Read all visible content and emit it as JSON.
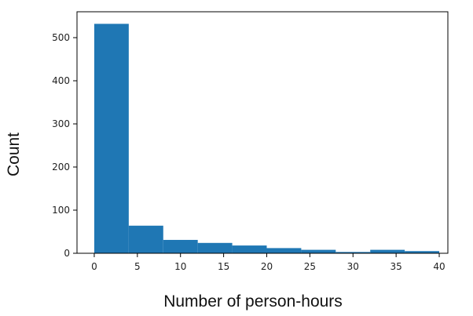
{
  "chart_data": {
    "type": "bar",
    "xlabel": "Number of person-hours",
    "ylabel": "Count",
    "xlim": [
      -2,
      41
    ],
    "ylim": [
      0,
      560
    ],
    "grid": false,
    "bar_color": "#1f77b4",
    "bins": [
      {
        "x0": 0,
        "x1": 4,
        "count": 532
      },
      {
        "x0": 4,
        "x1": 8,
        "count": 64
      },
      {
        "x0": 8,
        "x1": 12,
        "count": 31
      },
      {
        "x0": 12,
        "x1": 16,
        "count": 24
      },
      {
        "x0": 16,
        "x1": 20,
        "count": 18
      },
      {
        "x0": 20,
        "x1": 24,
        "count": 12
      },
      {
        "x0": 24,
        "x1": 28,
        "count": 8
      },
      {
        "x0": 28,
        "x1": 32,
        "count": 3
      },
      {
        "x0": 32,
        "x1": 36,
        "count": 8
      },
      {
        "x0": 36,
        "x1": 40,
        "count": 5
      }
    ],
    "x_ticks": [
      {
        "value": 0,
        "label": "0"
      },
      {
        "value": 5,
        "label": "5"
      },
      {
        "value": 10,
        "label": "10"
      },
      {
        "value": 15,
        "label": "15"
      },
      {
        "value": 20,
        "label": "20"
      },
      {
        "value": 25,
        "label": "25"
      },
      {
        "value": 30,
        "label": "30"
      },
      {
        "value": 35,
        "label": "35"
      },
      {
        "value": 40,
        "label": "40"
      }
    ],
    "y_ticks": [
      {
        "value": 0,
        "label": "0"
      },
      {
        "value": 100,
        "label": "100"
      },
      {
        "value": 200,
        "label": "200"
      },
      {
        "value": 300,
        "label": "300"
      },
      {
        "value": 400,
        "label": "400"
      },
      {
        "value": 500,
        "label": "500"
      }
    ]
  }
}
